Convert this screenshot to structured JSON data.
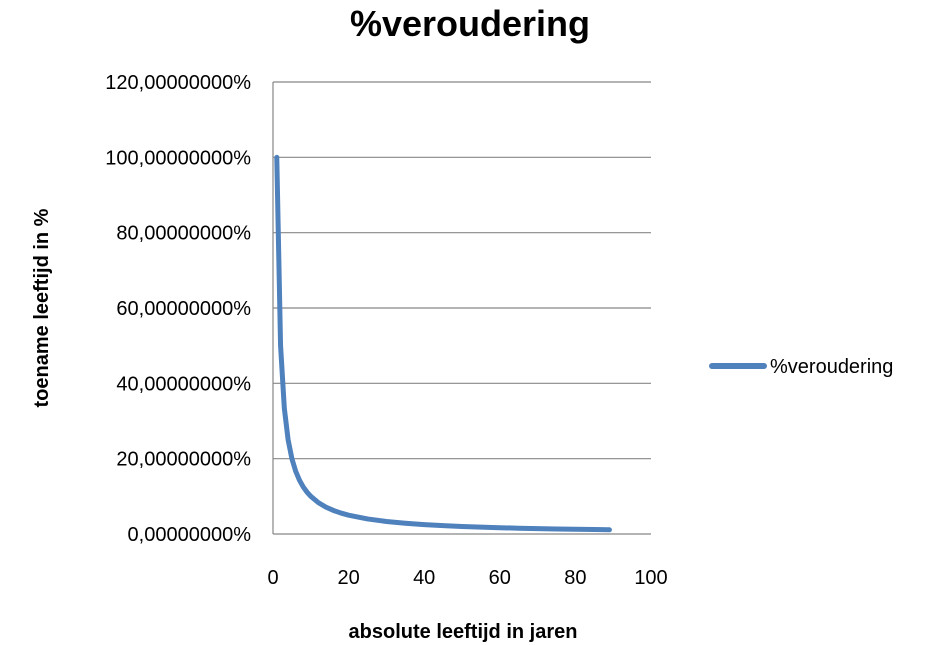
{
  "chart_data": {
    "type": "line",
    "title": "%veroudering",
    "xlabel": "absolute leeftijd in jaren",
    "ylabel": "toename leeftijd in %",
    "xlim": [
      0,
      100
    ],
    "ylim": [
      0,
      1.2
    ],
    "x_ticks": [
      "0",
      "20",
      "40",
      "60",
      "80",
      "100"
    ],
    "y_ticks": [
      "0,00000000%",
      "20,00000000%",
      "40,00000000%",
      "60,00000000%",
      "80,00000000%",
      "100,00000000%",
      "120,00000000%"
    ],
    "grid": "horizontal",
    "legend_position": "right",
    "series": [
      {
        "name": "%veroudering",
        "color": "#4F81BD",
        "x": [
          1,
          2,
          3,
          4,
          5,
          6,
          7,
          8,
          9,
          10,
          12,
          14,
          16,
          18,
          20,
          25,
          30,
          35,
          40,
          45,
          50,
          55,
          60,
          65,
          70,
          75,
          80,
          85,
          89
        ],
        "y": [
          1.0,
          0.5,
          0.3333,
          0.25,
          0.2,
          0.1667,
          0.1429,
          0.125,
          0.1111,
          0.1,
          0.0833,
          0.0714,
          0.0625,
          0.0556,
          0.05,
          0.04,
          0.0333,
          0.0286,
          0.025,
          0.0222,
          0.02,
          0.0182,
          0.0167,
          0.0154,
          0.0143,
          0.0133,
          0.0125,
          0.0118,
          0.0112
        ]
      }
    ]
  }
}
